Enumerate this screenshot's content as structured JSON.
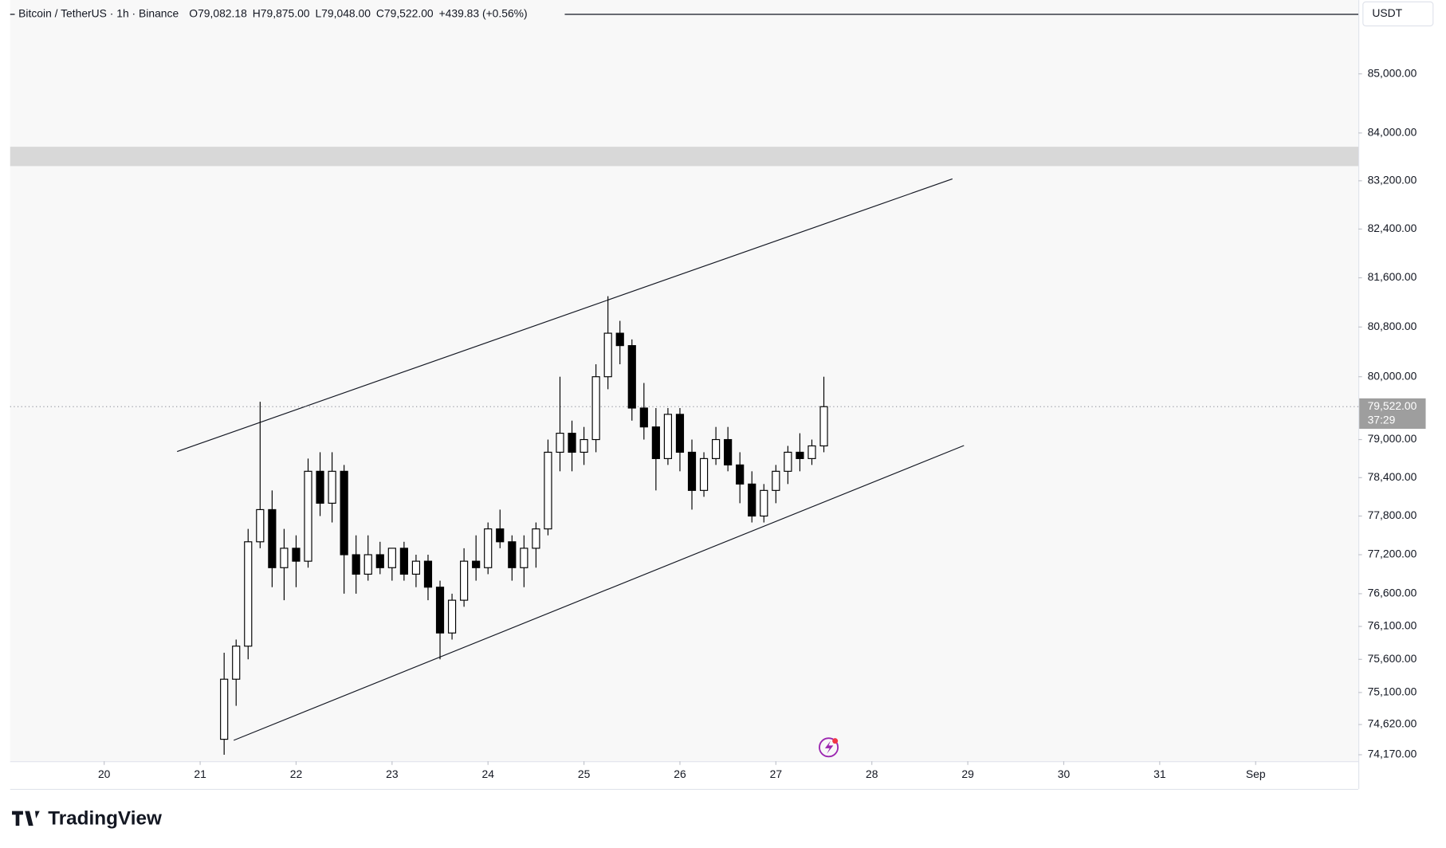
{
  "chart_data": {
    "type": "candlestick",
    "header": "Bitcoin / TetherUS · 1h · Binance",
    "ohlc_header": [
      "O79,082.18",
      "H79,875.00",
      "L79,048.00",
      "C79,522.00",
      "+439.83 (+0.56%)"
    ],
    "currency": "USDT",
    "logo": "TradingView",
    "log_scale": true,
    "xlim": [
      19.02,
      33.07
    ],
    "ylim": [
      74074,
      86265
    ],
    "xticks": [
      20,
      21,
      22,
      23,
      24,
      25,
      26,
      27,
      28,
      29,
      30,
      31,
      {
        "value": 32,
        "label": "Sep"
      }
    ],
    "yticks": [
      {
        "value": 85000,
        "label": "85,000.00"
      },
      {
        "value": 84000,
        "label": "84,000.00"
      },
      {
        "value": 83200,
        "label": "83,200.00"
      },
      {
        "value": 82400,
        "label": "82,400.00"
      },
      {
        "value": 81600,
        "label": "81,600.00"
      },
      {
        "value": 80800,
        "label": "80,800.00"
      },
      {
        "value": 80000,
        "label": "80,000.00"
      },
      {
        "value": 79000,
        "label": "79,000.00"
      },
      {
        "value": 78400,
        "label": "78,400.00"
      },
      {
        "value": 77800,
        "label": "77,800.00"
      },
      {
        "value": 77200,
        "label": "77,200.00"
      },
      {
        "value": 76600,
        "label": "76,600.00"
      },
      {
        "value": 76100,
        "label": "76,100.00"
      },
      {
        "value": 75600,
        "label": "75,600.00"
      },
      {
        "value": 75100,
        "label": "75,100.00"
      },
      {
        "value": 74620,
        "label": "74,620.00"
      },
      {
        "value": 74170,
        "label": "74,170.00"
      }
    ],
    "last_price": {
      "value": 79522,
      "label": "79,522.00"
    },
    "countdown": "37:29",
    "zone": [
      83445,
      83769
    ],
    "trendlines": [
      {
        "x": [
          20.76,
          28.84
        ],
        "y": [
          78811,
          83232
        ]
      },
      {
        "x": [
          21.35,
          28.96
        ],
        "y": [
          74385,
          78906
        ]
      }
    ],
    "up_color": "#ffffff",
    "down_color": "#000000",
    "x": [
      21.25,
      21.375,
      21.5,
      21.625,
      21.75,
      21.875,
      22,
      22.125,
      22.25,
      22.375,
      22.5,
      22.625,
      22.75,
      22.875,
      23,
      23.125,
      23.25,
      23.375,
      23.5,
      23.625,
      23.75,
      23.875,
      24,
      24.125,
      24.25,
      24.375,
      24.5,
      24.625,
      24.75,
      24.875,
      25,
      25.125,
      25.25,
      25.375,
      25.5,
      25.625,
      25.75,
      25.875,
      26,
      26.125,
      26.25,
      26.375,
      26.5,
      26.625,
      26.75,
      26.875,
      27,
      27.125,
      27.25,
      27.375,
      27.5
    ],
    "open": [
      74400,
      75300,
      75800,
      77400,
      77900,
      77000,
      77300,
      77100,
      78500,
      78000,
      78500,
      77200,
      76900,
      77200,
      77000,
      77300,
      76900,
      77100,
      76700,
      76000,
      76500,
      77100,
      77000,
      77600,
      77400,
      77000,
      77300,
      77600,
      78800,
      79100,
      78800,
      79000,
      80000,
      80700,
      80500,
      79500,
      79200,
      78700,
      79400,
      78800,
      78200,
      78700,
      79000,
      78600,
      78300,
      77800,
      78200,
      78500,
      78800,
      78700,
      78900
    ],
    "high": [
      75700,
      75900,
      77600,
      79600,
      78200,
      77600,
      77500,
      78700,
      78800,
      78800,
      78600,
      77500,
      77500,
      77400,
      77300,
      77400,
      77200,
      77200,
      76800,
      76600,
      77300,
      77500,
      77700,
      77900,
      77500,
      77500,
      77700,
      79000,
      80000,
      79300,
      79200,
      80200,
      81300,
      80900,
      80600,
      79900,
      79500,
      79500,
      79500,
      79000,
      78800,
      79200,
      79200,
      78800,
      78500,
      78300,
      78600,
      78900,
      79100,
      79000,
      80000
    ],
    "low": [
      74170,
      74900,
      75600,
      77300,
      76700,
      76500,
      76700,
      77000,
      77800,
      77700,
      76600,
      76600,
      76800,
      76900,
      76800,
      76800,
      76700,
      76500,
      75600,
      75900,
      76400,
      76800,
      76900,
      77300,
      76800,
      76700,
      77000,
      77500,
      78500,
      78500,
      78600,
      78800,
      79800,
      80200,
      79300,
      79000,
      78200,
      78600,
      78500,
      77900,
      78100,
      78600,
      78500,
      78000,
      77700,
      77700,
      78000,
      78300,
      78500,
      78600,
      78800
    ],
    "close": [
      75300,
      75800,
      77400,
      77900,
      77000,
      77300,
      77100,
      78500,
      78000,
      78500,
      77200,
      76900,
      77200,
      77000,
      77300,
      76900,
      77100,
      76700,
      76000,
      76500,
      77100,
      77000,
      77600,
      77400,
      77000,
      77300,
      77600,
      78800,
      79100,
      78800,
      79000,
      80000,
      80700,
      80500,
      79500,
      79200,
      78700,
      79400,
      78800,
      78200,
      78700,
      79000,
      78600,
      78300,
      77800,
      78200,
      78500,
      78800,
      78700,
      78900,
      79522
    ]
  }
}
